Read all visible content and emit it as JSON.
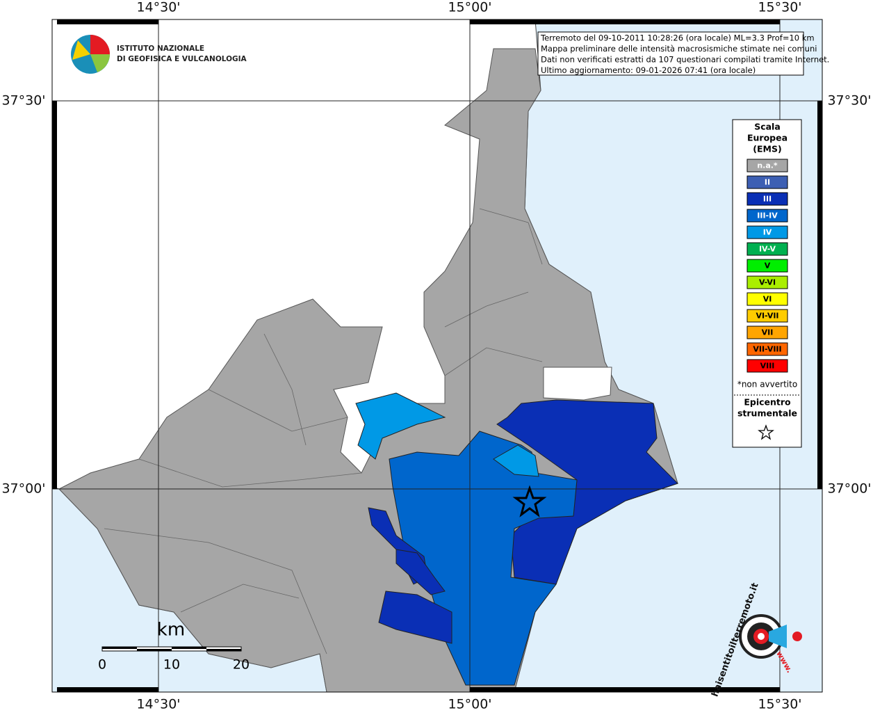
{
  "map": {
    "lon_labels": [
      "14°30'",
      "15°00'",
      "15°30'"
    ],
    "lat_labels": [
      "37°30'",
      "37°00'"
    ],
    "logo": {
      "line1": "ISTITUTO NAZIONALE",
      "line2": "DI GEOFISICA E VULCANOLOGIA"
    },
    "info": [
      "Terremoto del 09-10-2011 10:28:26 (ora locale) ML=3.3 Prof=10 km",
      "Mappa preliminare delle intensità macrosismiche stimate nei comuni",
      "Dati non verificati estratti da 107 questionari compilati tramite Internet.",
      "Ultimo aggiornamento: 09-01-2026 07:41 (ora locale)"
    ],
    "legend": {
      "title": [
        "Scala",
        "Europea",
        "(EMS)"
      ],
      "items": [
        {
          "label": "n.a.*",
          "color": "#a6a6a6"
        },
        {
          "label": "II",
          "color": "#3d5fb3"
        },
        {
          "label": "III",
          "color": "#0a2fb5"
        },
        {
          "label": "III-IV",
          "color": "#0066cc"
        },
        {
          "label": "IV",
          "color": "#0099e6"
        },
        {
          "label": "IV-V",
          "color": "#00b050"
        },
        {
          "label": "V",
          "color": "#00ee00"
        },
        {
          "label": "V-VI",
          "color": "#aaee00"
        },
        {
          "label": "VI",
          "color": "#ffff00"
        },
        {
          "label": "VI-VII",
          "color": "#ffcc00"
        },
        {
          "label": "VII",
          "color": "#ffa500"
        },
        {
          "label": "VII-VIII",
          "color": "#ff6600"
        },
        {
          "label": "VIII",
          "color": "#ff0000"
        }
      ],
      "note": "*non avvertito",
      "epicentre": [
        "Epicentro",
        "strumentale"
      ]
    },
    "scale": {
      "unit": "km",
      "labels": [
        "0",
        "10",
        "20"
      ]
    },
    "badge": {
      "text": "haisentitoilterremoto.it",
      "www": "www."
    }
  }
}
